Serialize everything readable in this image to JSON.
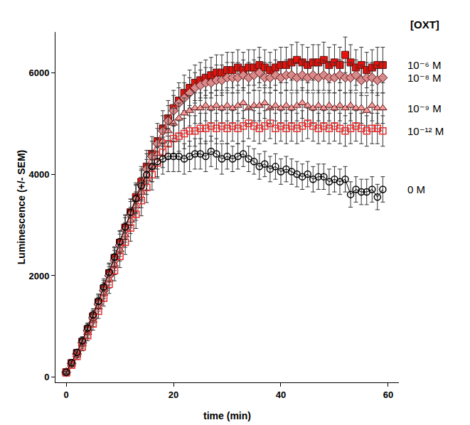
{
  "chart_data": {
    "type": "line",
    "x_label": "time (min)",
    "y_label": "Luminescence (+/- SEM)",
    "annotations": [
      {
        "text": "[OXT]"
      }
    ],
    "xlim": [
      -2,
      62
    ],
    "xticks": [
      0,
      20,
      40,
      60
    ],
    "ylim": [
      -100,
      6800
    ],
    "yticks": [
      0,
      2000,
      4000,
      6000
    ],
    "grid": false,
    "x": [
      0,
      1,
      2,
      3,
      4,
      5,
      6,
      7,
      8,
      9,
      10,
      11,
      12,
      13,
      14,
      15,
      16,
      17,
      18,
      19,
      20,
      21,
      22,
      23,
      24,
      25,
      26,
      27,
      28,
      29,
      30,
      31,
      32,
      33,
      34,
      35,
      36,
      37,
      38,
      39,
      40,
      41,
      42,
      43,
      44,
      45,
      46,
      47,
      48,
      49,
      50,
      51,
      52,
      53,
      54,
      55,
      56,
      57,
      58,
      59
    ],
    "series": [
      {
        "name": "10⁻⁶ M",
        "color": "#e8120c",
        "marker": "square",
        "line_style": "solid",
        "values": [
          100,
          280,
          480,
          700,
          950,
          1200,
          1480,
          1750,
          2050,
          2350,
          2650,
          2950,
          3250,
          3550,
          3850,
          4150,
          4400,
          4650,
          4900,
          5100,
          5300,
          5450,
          5600,
          5700,
          5800,
          5850,
          5900,
          5950,
          6000,
          6000,
          6050,
          6050,
          6100,
          6050,
          6100,
          6100,
          6150,
          6100,
          6050,
          6100,
          6150,
          6150,
          6200,
          6250,
          6200,
          6150,
          6200,
          6200,
          6250,
          6150,
          6200,
          6150,
          6350,
          6200,
          6100,
          6150,
          6050,
          6100,
          6150,
          6150
        ],
        "errors": [
          20,
          40,
          60,
          80,
          100,
          120,
          140,
          160,
          180,
          200,
          220,
          240,
          260,
          280,
          300,
          320,
          340,
          350,
          350,
          350,
          350,
          350,
          350,
          350,
          350,
          350,
          350,
          350,
          350,
          350,
          350,
          350,
          350,
          350,
          350,
          350,
          350,
          350,
          350,
          350,
          350,
          350,
          350,
          350,
          350,
          350,
          350,
          350,
          350,
          350,
          350,
          350,
          350,
          350,
          350,
          350,
          350,
          350,
          350,
          350
        ]
      },
      {
        "name": "10⁻⁸ M",
        "color": "#d98a8a",
        "marker": "diamond",
        "line_style": "solid",
        "values": [
          100,
          270,
          460,
          680,
          920,
          1170,
          1440,
          1710,
          2000,
          2300,
          2600,
          2900,
          3200,
          3500,
          3800,
          4100,
          4350,
          4600,
          4850,
          5050,
          5250,
          5400,
          5500,
          5600,
          5700,
          5750,
          5800,
          5800,
          5850,
          5850,
          5900,
          5900,
          5900,
          5950,
          5900,
          5950,
          6000,
          5900,
          5900,
          5950,
          5900,
          5950,
          5950,
          5900,
          5950,
          5900,
          5950,
          5900,
          5950,
          5900,
          5900,
          5950,
          5900,
          5900,
          5950,
          5850,
          5900,
          5900,
          5850,
          5900
        ],
        "errors": [
          20,
          40,
          60,
          80,
          100,
          120,
          140,
          160,
          180,
          200,
          220,
          240,
          260,
          280,
          300,
          300,
          300,
          300,
          300,
          300,
          300,
          300,
          300,
          300,
          300,
          300,
          300,
          300,
          300,
          300,
          300,
          300,
          300,
          300,
          300,
          300,
          300,
          300,
          300,
          300,
          300,
          300,
          300,
          300,
          300,
          300,
          300,
          300,
          300,
          300,
          300,
          300,
          300,
          300,
          300,
          300,
          300,
          300,
          300,
          300
        ]
      },
      {
        "name": "10⁻⁹ M",
        "color": "#f49a9a",
        "marker": "triangle-up",
        "line_style": "solid",
        "values": [
          100,
          260,
          440,
          650,
          880,
          1120,
          1380,
          1650,
          1930,
          2220,
          2510,
          2800,
          3090,
          3370,
          3640,
          3900,
          4150,
          4400,
          4650,
          4850,
          5000,
          5100,
          5200,
          5250,
          5300,
          5300,
          5350,
          5300,
          5350,
          5300,
          5350,
          5300,
          5350,
          5400,
          5300,
          5350,
          5350,
          5400,
          5300,
          5350,
          5300,
          5350,
          5300,
          5350,
          5400,
          5350,
          5300,
          5350,
          5300,
          5350,
          5300,
          5350,
          5300,
          5350,
          5300,
          5300,
          5250,
          5350,
          5300,
          5300
        ],
        "errors": [
          20,
          40,
          60,
          80,
          100,
          120,
          140,
          160,
          180,
          200,
          220,
          240,
          260,
          280,
          300,
          300,
          300,
          300,
          300,
          300,
          300,
          300,
          300,
          300,
          300,
          300,
          300,
          300,
          300,
          300,
          300,
          300,
          300,
          300,
          300,
          300,
          300,
          300,
          300,
          300,
          300,
          300,
          300,
          300,
          300,
          300,
          300,
          300,
          300,
          300,
          300,
          300,
          300,
          300,
          300,
          300,
          300,
          300,
          300,
          300
        ]
      },
      {
        "name": "10⁻¹² M",
        "color": "#e83030",
        "marker": "square-open",
        "line_style": "solid",
        "values": [
          90,
          240,
          410,
          600,
          820,
          1050,
          1300,
          1560,
          1830,
          2100,
          2380,
          2660,
          2940,
          3210,
          3480,
          3740,
          3990,
          4220,
          4430,
          4600,
          4700,
          4750,
          4800,
          4850,
          4850,
          4900,
          4900,
          4950,
          4900,
          4950,
          4900,
          4950,
          4900,
          4950,
          5000,
          4950,
          4900,
          4950,
          5000,
          4900,
          4950,
          4900,
          4950,
          4900,
          4950,
          5000,
          4950,
          4900,
          4950,
          4900,
          4950,
          4900,
          4850,
          4900,
          4950,
          4900,
          4850,
          4900,
          4900,
          4850
        ],
        "errors": [
          20,
          40,
          60,
          80,
          100,
          120,
          140,
          160,
          180,
          200,
          220,
          240,
          260,
          280,
          300,
          300,
          300,
          300,
          300,
          300,
          300,
          300,
          300,
          300,
          300,
          300,
          300,
          300,
          300,
          300,
          300,
          300,
          300,
          300,
          300,
          300,
          300,
          300,
          300,
          300,
          300,
          300,
          300,
          300,
          300,
          300,
          300,
          300,
          300,
          300,
          300,
          300,
          300,
          300,
          300,
          300,
          300,
          300,
          300,
          300
        ]
      },
      {
        "name": "0 M",
        "color": "#000000",
        "marker": "circle-open",
        "line_style": "solid",
        "values": [
          100,
          290,
          490,
          720,
          970,
          1230,
          1500,
          1780,
          2070,
          2370,
          2670,
          2960,
          3250,
          3520,
          3770,
          3990,
          4150,
          4250,
          4300,
          4350,
          4350,
          4350,
          4300,
          4350,
          4400,
          4400,
          4350,
          4450,
          4400,
          4300,
          4350,
          4300,
          4350,
          4400,
          4300,
          4250,
          4150,
          4200,
          4100,
          4150,
          4050,
          4100,
          4050,
          4000,
          3950,
          4000,
          3900,
          3950,
          3950,
          3850,
          3900,
          3850,
          3900,
          3600,
          3700,
          3650,
          3650,
          3700,
          3550,
          3700
        ],
        "errors": [
          20,
          40,
          60,
          80,
          100,
          120,
          140,
          160,
          180,
          200,
          220,
          240,
          260,
          280,
          300,
          300,
          300,
          300,
          300,
          300,
          300,
          300,
          300,
          300,
          300,
          300,
          300,
          300,
          300,
          300,
          250,
          250,
          250,
          250,
          250,
          250,
          250,
          250,
          250,
          250,
          250,
          250,
          250,
          250,
          250,
          250,
          250,
          250,
          250,
          250,
          250,
          250,
          250,
          250,
          250,
          250,
          250,
          250,
          250,
          250
        ]
      }
    ]
  }
}
